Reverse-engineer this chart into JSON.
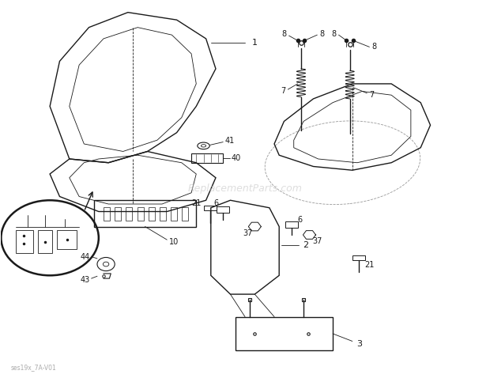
{
  "background_color": "#ffffff",
  "watermark": "ReplacementParts.com",
  "footnote": "ses19x_7A-V01",
  "line_color": "#1a1a1a",
  "label_color": "#1a1a1a"
}
